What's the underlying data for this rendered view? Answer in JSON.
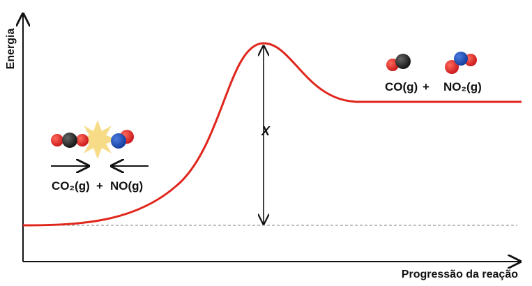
{
  "axes": {
    "y_label": "Energia",
    "x_label": "Progressão da reação"
  },
  "reactants": {
    "first": "CO₂(g)",
    "plus": "+",
    "second": "NO(g)"
  },
  "products": {
    "first": "CO(g)",
    "plus": "+",
    "second": "NO₂(g)"
  },
  "energy_label": "X"
}
